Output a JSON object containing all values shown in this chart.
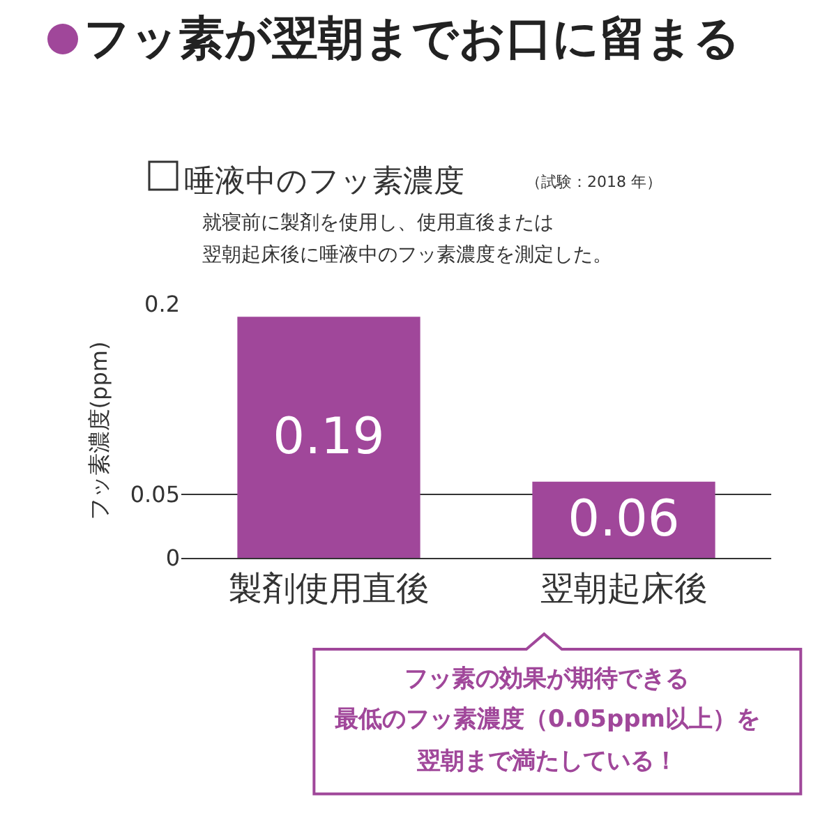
{
  "chart_data": {
    "type": "bar",
    "title": "フッ素が翌朝までお口に留まる",
    "subtitle": "唾液中のフッ素濃度",
    "ylabel": "フッ素濃度(ppm)",
    "categories": [
      "製剤使用直後",
      "翌朝起床後"
    ],
    "values": [
      0.19,
      0.06
    ],
    "color": "#a0479a",
    "data_labels": true,
    "ylim": [
      0,
      0.2
    ],
    "yticks": [
      0,
      0.05,
      0.2
    ],
    "grid": "y",
    "annotations": [
      "（試験：2018 年）",
      "就寝前に製剤を使用し、使用直後または",
      "翌朝起床後に唾液中のフッ素濃度を測定した。",
      "フッ素の効果が期待できる",
      "最低のフッ素濃度（0.05ppm以上）を",
      "翌朝まで満たしている！"
    ]
  }
}
